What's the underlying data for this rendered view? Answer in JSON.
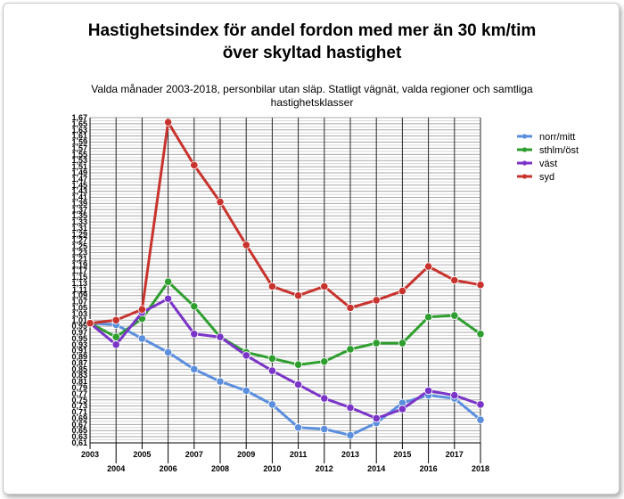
{
  "chart_data": {
    "type": "line",
    "title": "Hastighetsindex för andel fordon med mer än 30 km/tim över skyltad hastighet",
    "title_lines": [
      "Hastighetsindex för andel fordon med mer än 30 km/tim",
      "över skyltad hastighet"
    ],
    "subtitle": "Valda månader 2003-2018, personbilar utan släp. Statligt vägnät, valda regioner och samtliga hastighetsklasser",
    "x": [
      "2003",
      "2004",
      "2005",
      "2006",
      "2007",
      "2008",
      "2009",
      "2010",
      "2011",
      "2012",
      "2013",
      "2014",
      "2015",
      "2016",
      "2017",
      "2018"
    ],
    "ylim": [
      0.61,
      1.67
    ],
    "y_tick_step": 0.02,
    "grid": true,
    "legend_position": "right",
    "series": [
      {
        "name": "norr/mitt",
        "color": "#5b8fde",
        "values": [
          1.0,
          0.995,
          0.95,
          0.905,
          0.85,
          0.81,
          0.78,
          0.735,
          0.66,
          0.655,
          0.635,
          0.675,
          0.74,
          0.765,
          0.755,
          0.685
        ]
      },
      {
        "name": "sthlm/öst",
        "color": "#2e9e2e",
        "values": [
          1.0,
          0.955,
          1.015,
          1.135,
          1.055,
          0.955,
          0.905,
          0.885,
          0.865,
          0.875,
          0.915,
          0.935,
          0.935,
          1.02,
          1.025,
          0.965
        ]
      },
      {
        "name": "väst",
        "color": "#7a35c8",
        "values": [
          1.0,
          0.93,
          1.035,
          1.08,
          0.965,
          0.955,
          0.895,
          0.845,
          0.8,
          0.755,
          0.725,
          0.69,
          0.72,
          0.78,
          0.765,
          0.735
        ]
      },
      {
        "name": "syd",
        "color": "#c8332d",
        "values": [
          1.0,
          1.01,
          1.045,
          1.655,
          1.515,
          1.395,
          1.255,
          1.12,
          1.09,
          1.12,
          1.05,
          1.075,
          1.105,
          1.185,
          1.14,
          1.125
        ]
      }
    ]
  }
}
